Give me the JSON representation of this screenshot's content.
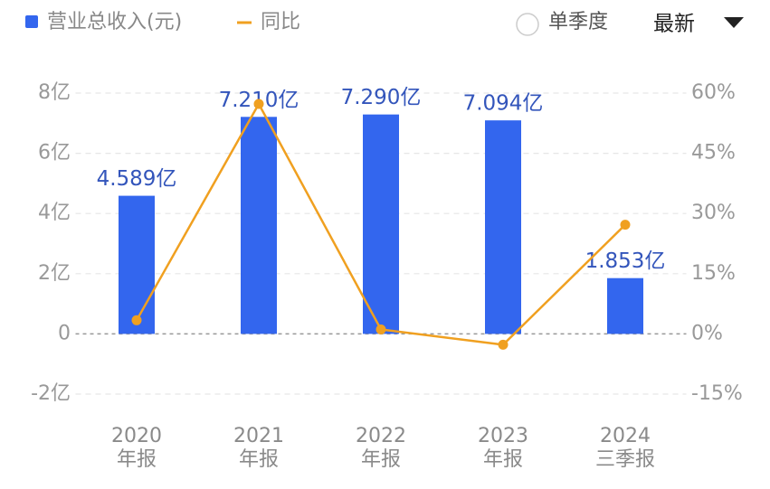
{
  "chart_data": {
    "type": "bar",
    "categories": [
      "2020\n年报",
      "2021\n年报",
      "2022\n年报",
      "2023\n年报",
      "2024\n三季报"
    ],
    "series": [
      {
        "name": "营业总收入(元)",
        "type": "bar",
        "color": "#3366ee",
        "values": [
          4.589,
          7.21,
          7.29,
          7.094,
          1.853
        ],
        "value_labels": [
          "4.589亿",
          "7.210亿",
          "7.290亿",
          "7.094亿",
          "1.853亿"
        ]
      },
      {
        "name": "同比",
        "type": "line",
        "axis": "y2",
        "color": "#f0a020",
        "values": [
          3.4,
          57.3,
          1.1,
          -2.7,
          27.2
        ]
      }
    ],
    "ylim": [
      -2,
      8
    ],
    "yticks": [
      {
        "value": -2,
        "label": "-2亿"
      },
      0,
      {
        "value": 2,
        "label": "2亿"
      },
      {
        "value": 4,
        "label": "4亿"
      },
      {
        "value": 6,
        "label": "6亿"
      },
      {
        "value": 8,
        "label": "8亿"
      }
    ],
    "y2lim": [
      -15,
      60
    ],
    "y2ticks": [
      {
        "value": -15,
        "label": "-15%"
      },
      {
        "value": 0,
        "label": "0%"
      },
      {
        "value": 15,
        "label": "15%"
      },
      {
        "value": 30,
        "label": "30%"
      },
      {
        "value": 45,
        "label": "45%"
      },
      {
        "value": 60,
        "label": "60%"
      }
    ],
    "grid": true,
    "toggle_label": "单季度",
    "period_select": "最新"
  }
}
